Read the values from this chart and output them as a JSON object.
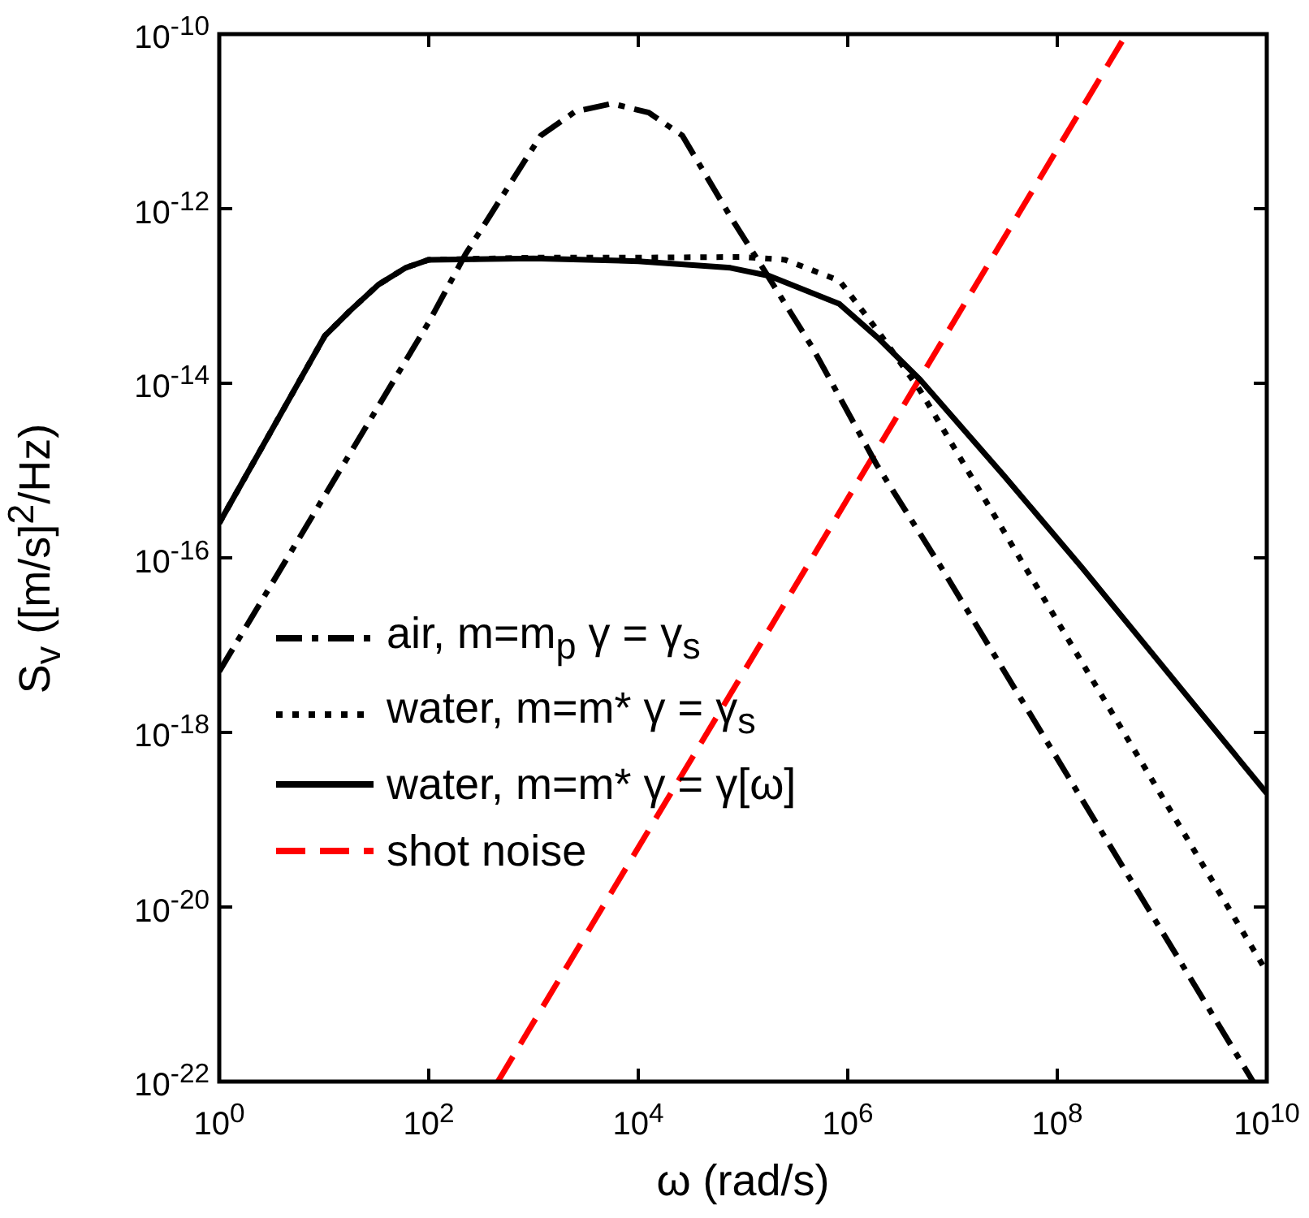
{
  "chart_data": {
    "type": "line",
    "xlabel": "ω (rad/s)",
    "ylabel": "S$_{v}$ ([m/s]$^{2}$/Hz)",
    "log": "xy",
    "grid": false,
    "legend": "left",
    "marker": "none",
    "xlim": [
      1,
      10000000000
    ],
    "ylim": [
      1e-22,
      1e-10
    ],
    "xticks": [
      {
        "value": 1,
        "label": "10$^{0}$"
      },
      {
        "value": 100,
        "label": "10$^{2}$"
      },
      {
        "value": 10000,
        "label": "10$^{4}$"
      },
      {
        "value": 1000000,
        "label": "10$^{6}$"
      },
      {
        "value": 100000000,
        "label": "10$^{8}$"
      },
      {
        "value": 10000000000,
        "label": "10$^{10}$"
      }
    ],
    "yticks": [
      {
        "value": 1e-22,
        "label": "10$^{-22}$"
      },
      {
        "value": 1e-20,
        "label": "10$^{-20}$"
      },
      {
        "value": 1e-18,
        "label": "10$^{-18}$"
      },
      {
        "value": 1e-16,
        "label": "10$^{-16}$"
      },
      {
        "value": 1e-14,
        "label": "10$^{-14}$"
      },
      {
        "value": 1e-12,
        "label": "10$^{-12}$"
      },
      {
        "value": 1e-10,
        "label": "10$^{-10}$"
      }
    ],
    "series": [
      {
        "name": "air, m=m$_{p}$ γ = γ$_{s}$",
        "color": "#000000",
        "line_style": "dashdot",
        "x": [
          1,
          10,
          100,
          224,
          1175,
          2512,
          5623,
          12589,
          26303,
          75860,
          138000,
          457000,
          1900000,
          7900000,
          7400000000
        ],
        "values": [
          5e-18,
          5e-16,
          5e-14,
          3e-13,
          6.9e-12,
          1.3e-11,
          1.6e-11,
          1.26e-11,
          6.9e-12,
          8.1e-13,
          2.6e-13,
          2.6e-14,
          1.15e-15,
          7.6e-17,
          1e-22
        ]
      },
      {
        "name": "water, m=m* γ = γ$_{s}$",
        "color": "#000000",
        "line_style": "dotted",
        "x": [
          1,
          10.2,
          17.8,
          33.1,
          60,
          100,
          1000,
          10000,
          100000,
          251000,
          832000,
          1900000,
          4900000,
          46800000,
          10000000000
        ],
        "values": [
          2.5e-16,
          3.5e-14,
          6.8e-14,
          1.35e-13,
          2.1e-13,
          2.6e-13,
          2.75e-13,
          2.75e-13,
          2.8e-13,
          2.6e-13,
          1.5e-13,
          4.1e-14,
          8.3e-15,
          8.7e-17,
          1.8e-21
        ]
      },
      {
        "name": "water, m=m* γ = γ[ω]",
        "color": "#000000",
        "line_style": "solid",
        "x": [
          1,
          10.2,
          17.8,
          33.1,
          60,
          100,
          1000,
          10000,
          75860,
          178000,
          832000,
          2000000,
          4900000,
          31600000,
          174000000,
          10000000000
        ],
        "values": [
          2.5e-16,
          3.5e-14,
          6.8e-14,
          1.35e-13,
          2.1e-13,
          2.6e-13,
          2.7e-13,
          2.5e-13,
          2.1e-13,
          1.7e-13,
          8.1e-14,
          3.2e-14,
          1.1e-14,
          8.5e-16,
          7.6e-17,
          2e-19
        ]
      },
      {
        "name": "shot noise",
        "color": "#ff0000",
        "line_style": "dashed",
        "x": [
          457,
          457000000
        ],
        "values": [
          1e-22,
          1e-10
        ]
      }
    ]
  }
}
